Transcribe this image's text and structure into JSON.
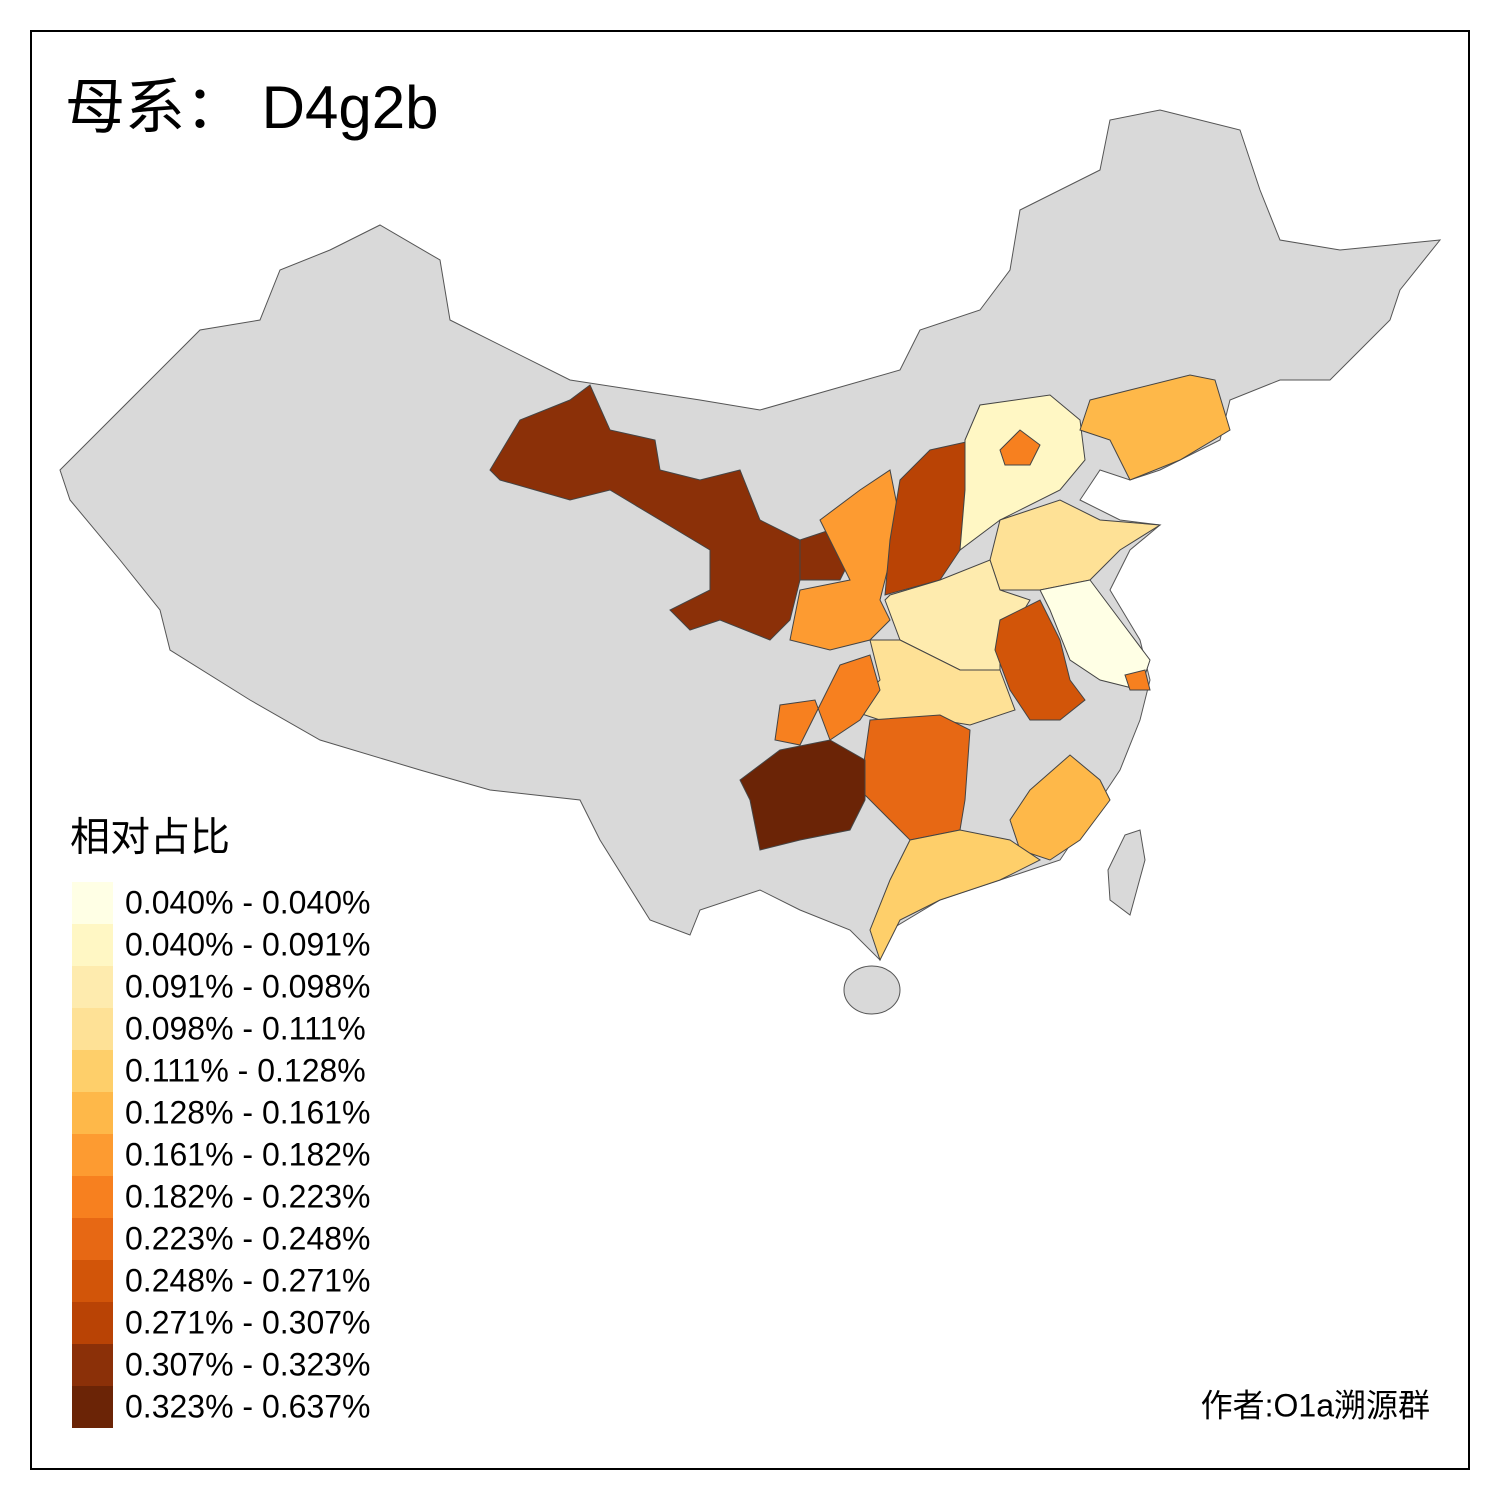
{
  "title": "母系： D4g2b",
  "legend": {
    "title": "相对占比",
    "items": [
      {
        "label": "0.040% - 0.040%",
        "color": "#ffffe5"
      },
      {
        "label": "0.040% - 0.091%",
        "color": "#fff7c4"
      },
      {
        "label": "0.091% - 0.098%",
        "color": "#feebae"
      },
      {
        "label": "0.098% - 0.111%",
        "color": "#fee196"
      },
      {
        "label": "0.111% - 0.128%",
        "color": "#fecf6a"
      },
      {
        "label": "0.128% - 0.161%",
        "color": "#feb849"
      },
      {
        "label": "0.161% - 0.182%",
        "color": "#fd9b31"
      },
      {
        "label": "0.182% - 0.223%",
        "color": "#f7801f"
      },
      {
        "label": "0.223% - 0.248%",
        "color": "#e76814"
      },
      {
        "label": "0.248% - 0.271%",
        "color": "#d25509"
      },
      {
        "label": "0.271% - 0.307%",
        "color": "#b94305"
      },
      {
        "label": "0.307% - 0.323%",
        "color": "#8b3008"
      },
      {
        "label": "0.323% - 0.637%",
        "color": "#6b2406"
      }
    ]
  },
  "author": "作者:O1a溯源群"
}
